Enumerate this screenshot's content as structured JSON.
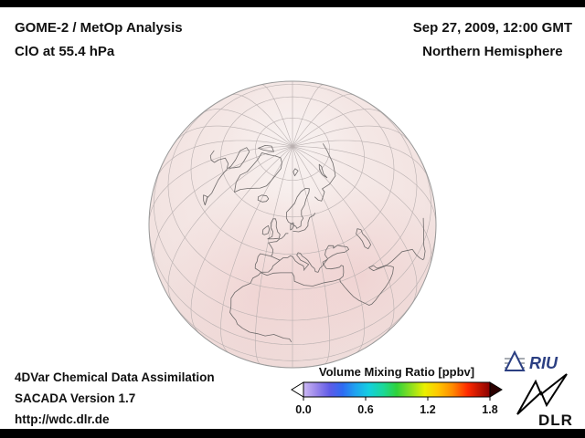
{
  "header": {
    "title": "GOME-2 / MetOp Analysis",
    "subtitle": "ClO at 55.4 hPa",
    "datetime": "Sep 27, 2009, 12:00 GMT",
    "region": "Northern Hemisphere"
  },
  "map": {
    "projection": "orthographic-globe",
    "hemisphere": "Northern Hemisphere"
  },
  "colorbar": {
    "title": "Volume Mixing Ratio [ppbv]",
    "tick_labels": [
      "0.0",
      "0.6",
      "1.2",
      "1.8"
    ],
    "min": 0.0,
    "max": 1.8,
    "left_arrow_color": "#ffffff",
    "right_arrow_color": "#2b0000",
    "gradient_stops": [
      [
        "0",
        "#cdb9f4"
      ],
      [
        "0.07",
        "#9a86ea"
      ],
      [
        "0.14",
        "#5f5ce8"
      ],
      [
        "0.21",
        "#2e6bf2"
      ],
      [
        "0.28",
        "#1ea4f0"
      ],
      [
        "0.35",
        "#14cfe0"
      ],
      [
        "0.43",
        "#1bd896"
      ],
      [
        "0.5",
        "#2fd23b"
      ],
      [
        "0.58",
        "#90e01e"
      ],
      [
        "0.65",
        "#eaf000"
      ],
      [
        "0.72",
        "#ffc800"
      ],
      [
        "0.8",
        "#ff8a00"
      ],
      [
        "0.88",
        "#ff2a00"
      ],
      [
        "1",
        "#8a0000"
      ]
    ]
  },
  "footer": {
    "line1": "4DVar Chemical Data Assimilation",
    "line2": "SACADA Version 1.7",
    "line3": "http://wdc.dlr.de"
  },
  "logos": {
    "riu": "RIU",
    "dlr": "DLR"
  }
}
